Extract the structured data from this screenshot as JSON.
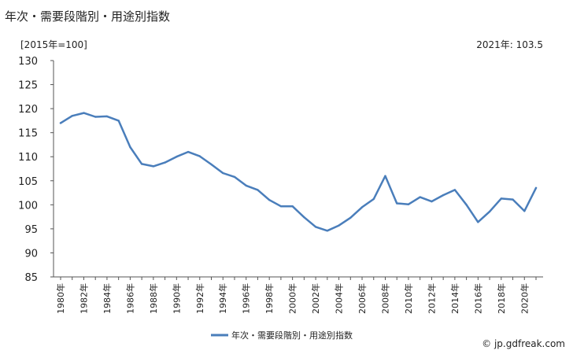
{
  "title": "年次・需要段階別・用途別指数",
  "unit_label": "[2015年=100]",
  "latest_label": "2021年: 103.5",
  "source_text": "© jp.gdfreak.com",
  "colors": {
    "line": "#4a7ebb",
    "axis": "#555555",
    "grid": "#d9d9d9"
  },
  "chart_data": {
    "type": "line",
    "title": "年次・需要段階別・用途別指数",
    "ylabel": "[2015年=100]",
    "xlabel": "",
    "ylim": [
      85,
      130
    ],
    "y_ticks": [
      "130",
      "125",
      "120",
      "115",
      "110",
      "105",
      "100",
      "95",
      "90",
      "85"
    ],
    "x": [
      1980,
      1981,
      1982,
      1983,
      1984,
      1985,
      1986,
      1987,
      1988,
      1989,
      1990,
      1991,
      1992,
      1993,
      1994,
      1995,
      1996,
      1997,
      1998,
      1999,
      2000,
      2001,
      2002,
      2003,
      2004,
      2005,
      2006,
      2007,
      2008,
      2009,
      2010,
      2011,
      2012,
      2013,
      2014,
      2015,
      2016,
      2017,
      2018,
      2019,
      2020,
      2021
    ],
    "x_tick_labels": [
      "1980年",
      "1982年",
      "1984年",
      "1986年",
      "1988年",
      "1990年",
      "1992年",
      "1994年",
      "1996年",
      "1998年",
      "2000年",
      "2002年",
      "2004年",
      "2006年",
      "2008年",
      "2010年",
      "2012年",
      "2014年",
      "2016年",
      "2018年",
      "2020年"
    ],
    "grid": false,
    "legend_position": "bottom",
    "series": [
      {
        "name": "年次・需要段階別・用途別指数",
        "values": [
          117.0,
          118.5,
          119.1,
          118.3,
          118.4,
          117.5,
          112.0,
          108.5,
          108.0,
          108.8,
          110.0,
          111.0,
          110.1,
          108.4,
          106.6,
          105.8,
          104.0,
          103.1,
          101.0,
          99.7,
          99.7,
          97.4,
          95.4,
          94.6,
          95.7,
          97.3,
          99.5,
          101.2,
          106.0,
          100.3,
          100.1,
          101.6,
          100.7,
          102.0,
          103.1,
          100.0,
          96.4,
          98.6,
          101.3,
          101.1,
          98.7,
          103.5
        ]
      }
    ]
  }
}
